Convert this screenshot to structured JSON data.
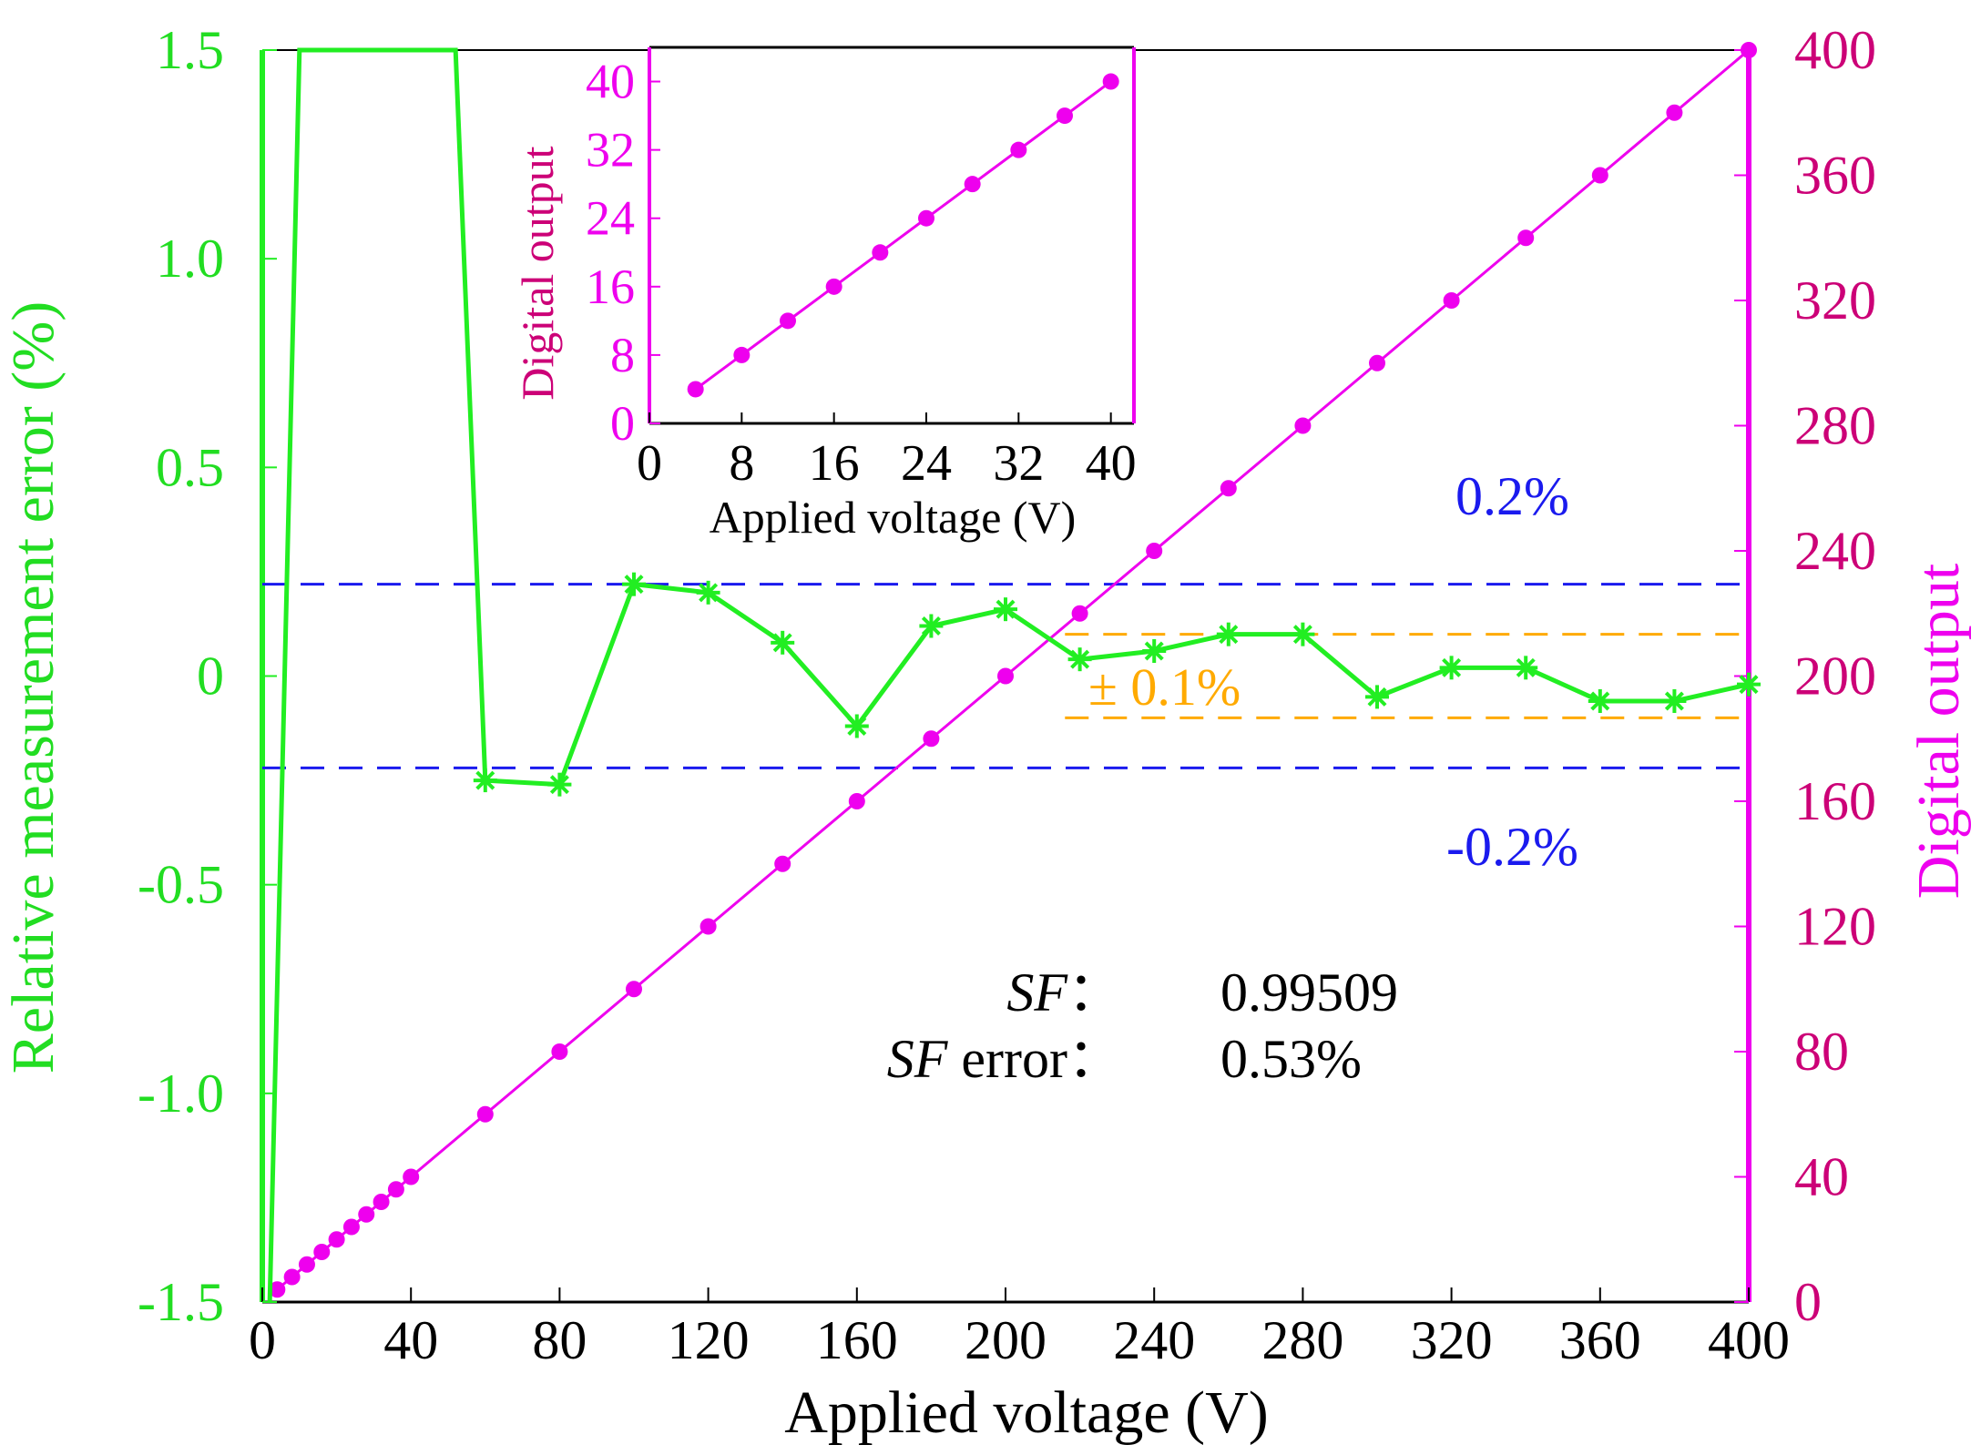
{
  "chart_data": {
    "type": "line",
    "xlabel": "Applied voltage (V)",
    "x_ticks": [
      "0",
      "40",
      "80",
      "120",
      "160",
      "200",
      "240",
      "280",
      "320",
      "360",
      "400"
    ],
    "xlim": [
      0,
      400
    ],
    "left_axis": {
      "label": "Relative measurement error (%)",
      "ylim": [
        -1.5,
        1.5
      ],
      "ticks": [
        "1.5",
        "1.0",
        "0.5",
        "0",
        "-0.5",
        "-1.0",
        "-1.5"
      ],
      "color": "#22ee22"
    },
    "right_axis": {
      "label": "Digital output",
      "ylim": [
        0,
        400
      ],
      "ticks": [
        "400",
        "360",
        "320",
        "280",
        "240",
        "200",
        "160",
        "120",
        "80",
        "40",
        "0"
      ],
      "color": "#ee00ee",
      "tick_color": "#cc0077"
    },
    "series": [
      {
        "name": "Relative measurement error",
        "axis": "left",
        "marker": "asterisk",
        "color": "#22ee22",
        "x": [
          2,
          10,
          20,
          52,
          60,
          80,
          100,
          120,
          140,
          160,
          180,
          200,
          220,
          240,
          260,
          280,
          300,
          320,
          340,
          360,
          380,
          400
        ],
        "y": [
          -1.5,
          1.5,
          1.5,
          1.5,
          -0.25,
          -0.26,
          0.22,
          0.2,
          0.08,
          -0.12,
          0.12,
          0.16,
          0.04,
          0.06,
          0.1,
          0.1,
          -0.05,
          0.02,
          0.02,
          -0.06,
          -0.06,
          -0.02
        ],
        "marked_from_index": 4
      },
      {
        "name": "Digital output",
        "axis": "right",
        "marker": "circle",
        "color": "#ee00ee",
        "x": [
          4,
          8,
          12,
          16,
          20,
          24,
          28,
          32,
          36,
          40,
          60,
          80,
          100,
          120,
          140,
          160,
          180,
          200,
          220,
          240,
          260,
          280,
          300,
          320,
          340,
          360,
          380,
          400
        ],
        "y": [
          4,
          8,
          12,
          16,
          20,
          24,
          28,
          32,
          36,
          40,
          60,
          80,
          100,
          120,
          140,
          160,
          180,
          200,
          220,
          240,
          260,
          280,
          300,
          320,
          340,
          360,
          380,
          400
        ]
      }
    ],
    "reference_lines": [
      {
        "value": 0.22,
        "axis": "left",
        "color": "#1a1aee",
        "label": "0.2%"
      },
      {
        "value": -0.22,
        "axis": "left",
        "color": "#1a1aee",
        "label": "-0.2%"
      },
      {
        "value": 0.1,
        "axis": "left",
        "color": "#ffaa00",
        "x_from": 216,
        "x_to": 400
      },
      {
        "value": -0.1,
        "axis": "left",
        "color": "#ffaa00",
        "x_from": 216,
        "x_to": 400
      }
    ],
    "annotations": {
      "orange_band": "± 0.1%",
      "sf_label": "SF",
      "sf_colon": "：",
      "sf_value": "0.99509",
      "sf_error_label": "SF",
      "sf_error_suffix": " error：",
      "sf_error_value": "0.53%"
    },
    "inset": {
      "type": "line",
      "xlabel": "Applied voltage (V)",
      "ylabel": "Digital output",
      "xlim": [
        0,
        42
      ],
      "ylim": [
        0,
        44
      ],
      "x_ticks": [
        "0",
        "8",
        "16",
        "24",
        "32",
        "40"
      ],
      "y_ticks": [
        "0",
        "8",
        "16",
        "24",
        "32",
        "40"
      ],
      "color": "#ee00ee",
      "x": [
        4,
        8,
        12,
        16,
        20,
        24,
        28,
        32,
        36,
        40
      ],
      "y": [
        4,
        8,
        12,
        16,
        20,
        24,
        28,
        32,
        36,
        40
      ]
    }
  }
}
